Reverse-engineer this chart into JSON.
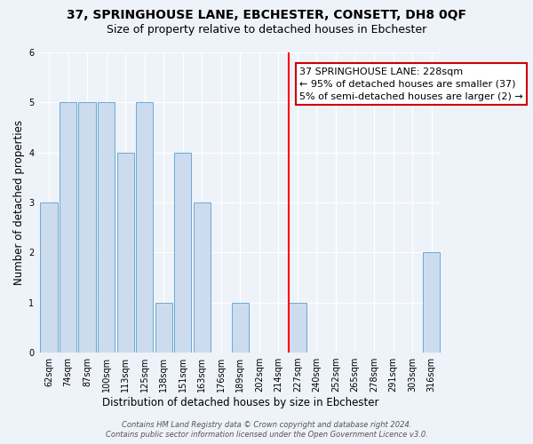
{
  "title": "37, SPRINGHOUSE LANE, EBCHESTER, CONSETT, DH8 0QF",
  "subtitle": "Size of property relative to detached houses in Ebchester",
  "xlabel": "Distribution of detached houses by size in Ebchester",
  "ylabel": "Number of detached properties",
  "bin_labels": [
    "62sqm",
    "74sqm",
    "87sqm",
    "100sqm",
    "113sqm",
    "125sqm",
    "138sqm",
    "151sqm",
    "163sqm",
    "176sqm",
    "189sqm",
    "202sqm",
    "214sqm",
    "227sqm",
    "240sqm",
    "252sqm",
    "265sqm",
    "278sqm",
    "291sqm",
    "303sqm",
    "316sqm"
  ],
  "bar_heights": [
    3,
    5,
    5,
    5,
    4,
    5,
    1,
    4,
    3,
    0,
    1,
    0,
    0,
    1,
    0,
    0,
    0,
    0,
    0,
    0,
    2
  ],
  "bar_color": "#ccdcee",
  "bar_edge_color": "#6aaad4",
  "red_line_index": 13,
  "property_size": "228sqm",
  "annotation_text": "37 SPRINGHOUSE LANE: 228sqm\n← 95% of detached houses are smaller (37)\n5% of semi-detached houses are larger (2) →",
  "annotation_box_color": "#ffffff",
  "annotation_box_edge_color": "#cc0000",
  "ylim": [
    0,
    6
  ],
  "yticks": [
    0,
    1,
    2,
    3,
    4,
    5,
    6
  ],
  "background_color": "#eef2f9",
  "footer_line1": "Contains HM Land Registry data © Crown copyright and database right 2024.",
  "footer_line2": "Contains public sector information licensed under the Open Government Licence v3.0.",
  "title_fontsize": 10,
  "subtitle_fontsize": 9,
  "axis_label_fontsize": 8.5,
  "tick_fontsize": 7,
  "annotation_fontsize": 8,
  "footer_fontsize": 6
}
